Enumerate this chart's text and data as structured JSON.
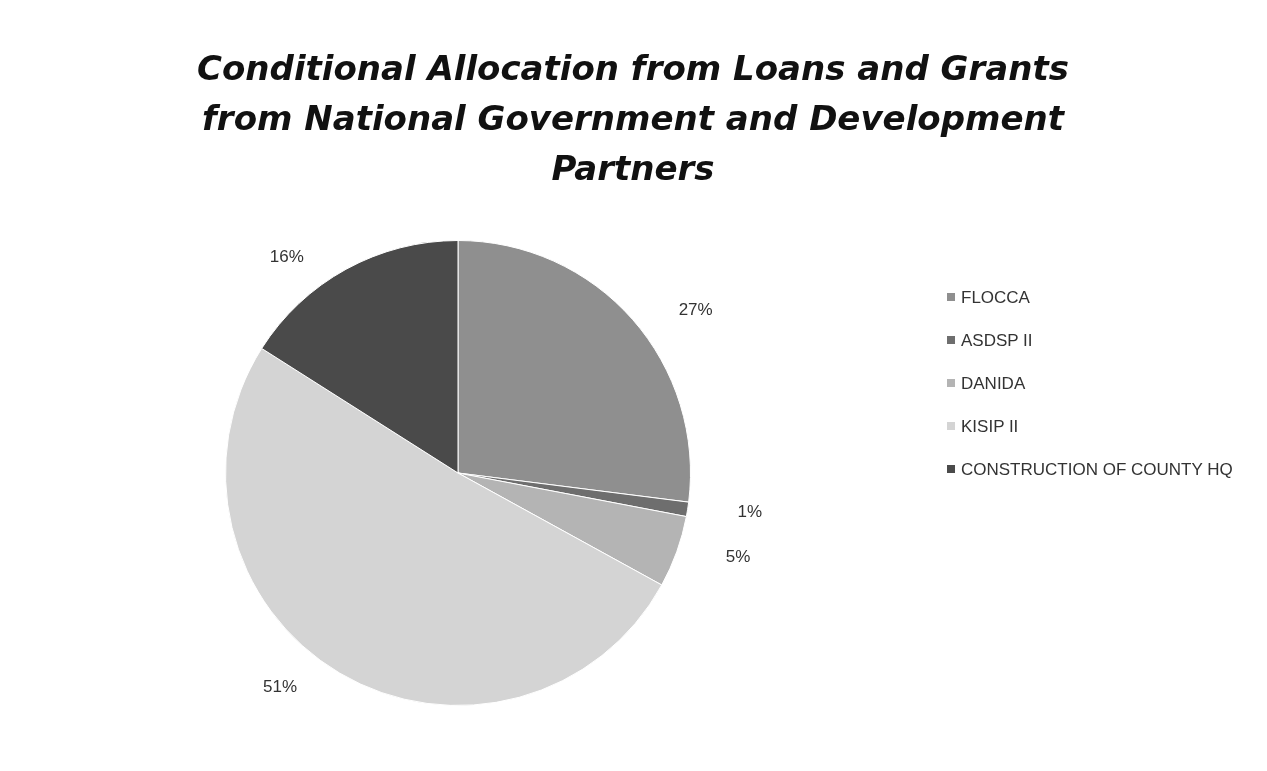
{
  "chart_data": {
    "type": "pie",
    "title": "Conditional Allocation from Loans and Grants\nfrom National Government and Development\nPartners",
    "categories": [
      "FLOCCA",
      "ASDSP II",
      "DANIDA",
      "KISIP II",
      "CONSTRUCTION OF COUNTY HQ"
    ],
    "values": [
      27,
      1,
      5,
      51,
      16
    ],
    "colors": [
      "#8f8f8f",
      "#6e6e6e",
      "#b4b4b4",
      "#d4d4d4",
      "#4a4a4a"
    ],
    "value_labels": [
      "27%",
      "1%",
      "5%",
      "51%",
      "16%"
    ],
    "legend": "right"
  }
}
